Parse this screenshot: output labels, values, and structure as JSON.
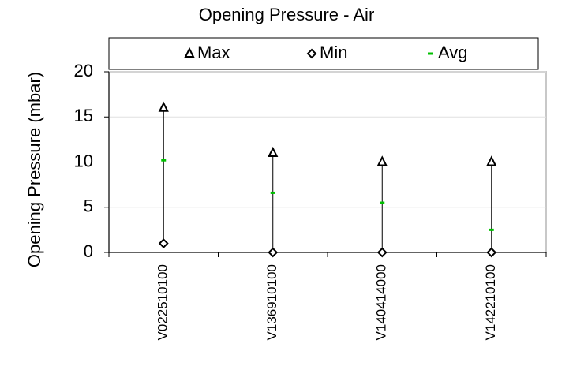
{
  "chart_data": {
    "type": "range",
    "title": "Opening Pressure - Air",
    "y_label": "Opening Pressure (mbar)",
    "categories": [
      "V022510100",
      "V136910100",
      "V140414000",
      "V142210100"
    ],
    "series": [
      {
        "name": "Max",
        "color": "#000000",
        "marker": "triangle",
        "values": [
          16,
          11,
          10,
          10
        ]
      },
      {
        "name": "Min",
        "color": "#000000",
        "marker": "diamond",
        "values": [
          1,
          0,
          0,
          0
        ]
      },
      {
        "name": "Avg",
        "color": "#00c000",
        "marker": "dash",
        "values": [
          10.2,
          6.6,
          5.5,
          2.5
        ]
      }
    ],
    "ylim": [
      0,
      20
    ],
    "yticks": [
      0,
      5,
      10,
      15,
      20
    ],
    "grid": true,
    "legend": "top"
  }
}
